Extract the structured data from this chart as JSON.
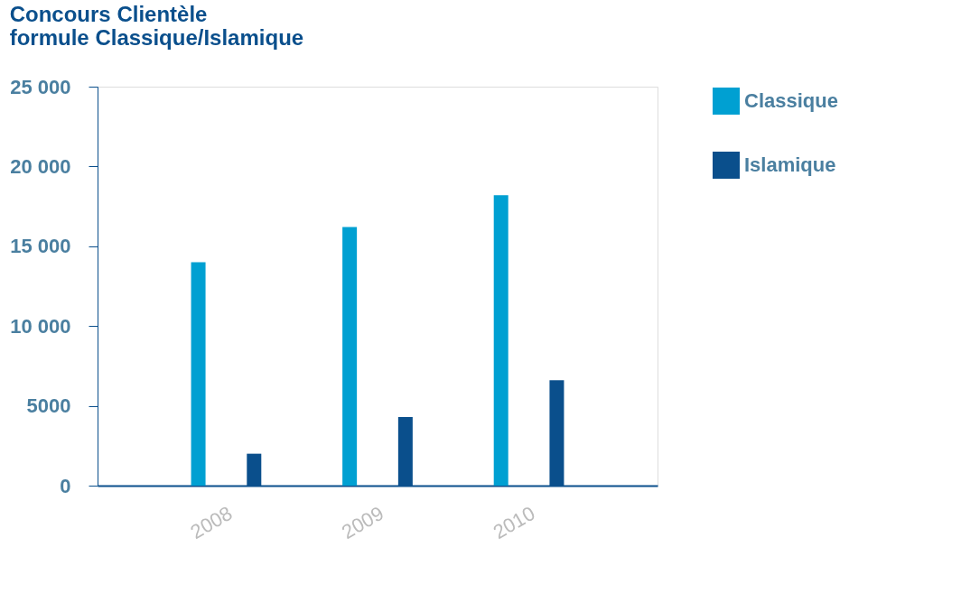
{
  "chart_data": {
    "type": "bar",
    "title": [
      "Concours Clientèle",
      "formule Classique/Islamique"
    ],
    "categories": [
      "2008",
      "2009",
      "2010"
    ],
    "series": [
      {
        "name": "Classique",
        "color": "#00a0d2",
        "values": [
          14000,
          16200,
          18200
        ]
      },
      {
        "name": "Islamique",
        "color": "#0a4f8c",
        "values": [
          2000,
          4300,
          6600
        ]
      }
    ],
    "ylim": [
      0,
      25000
    ],
    "yticks": [
      0,
      {
        "value": 5000,
        "label": "5000"
      },
      {
        "value": 10000,
        "label": "10 000"
      },
      {
        "value": 15000,
        "label": "15 000"
      },
      {
        "value": 20000,
        "label": "20 000"
      },
      {
        "value": 25000,
        "label": "25 000"
      }
    ],
    "grid": false,
    "legend": "top right"
  }
}
